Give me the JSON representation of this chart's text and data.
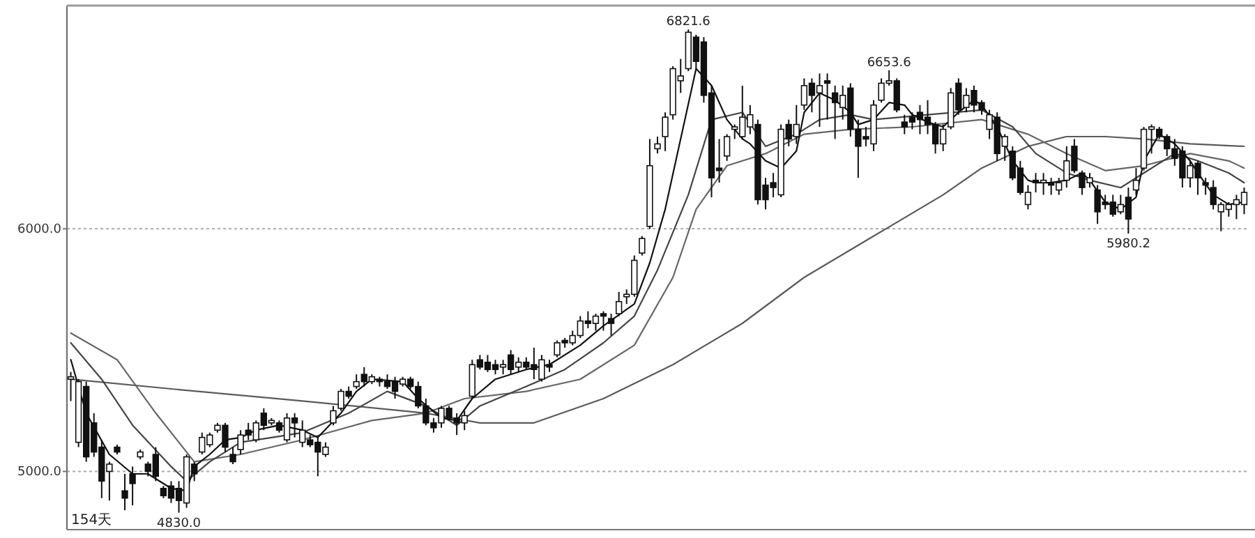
{
  "chart_data": {
    "type": "candlestick",
    "color": "#111111",
    "ylim": [
      4760,
      6920
    ],
    "yticks": [
      {
        "value": 5000,
        "label": "5000.0"
      },
      {
        "value": 6000,
        "label": "6000.0"
      }
    ],
    "grid": "y",
    "tick_labels": "y",
    "categories": [
      null,
      null,
      null,
      null,
      null,
      null,
      null,
      null,
      null,
      null,
      null,
      null,
      null,
      null,
      null,
      null,
      null,
      null,
      null,
      null,
      null,
      null,
      null,
      null,
      null,
      null,
      null,
      null,
      null,
      null,
      null,
      null,
      null,
      null,
      null,
      null,
      null,
      null,
      null,
      null,
      null,
      null,
      null,
      null,
      null,
      null,
      null,
      null,
      null,
      null,
      null,
      null,
      null,
      null,
      null,
      null,
      null,
      null,
      null,
      null,
      null,
      null,
      null,
      null,
      null,
      null,
      null,
      null,
      null,
      null,
      null,
      null,
      null,
      null,
      null,
      null,
      null,
      null,
      null,
      null,
      null,
      null,
      null,
      null,
      null,
      null,
      null,
      null,
      null,
      null,
      null,
      null,
      null,
      null,
      null,
      null,
      null,
      null,
      null,
      null,
      null,
      null,
      null,
      null,
      null,
      null,
      null,
      null,
      null,
      null,
      null,
      null,
      null,
      null,
      null,
      null,
      null,
      null,
      null,
      null,
      null,
      null,
      null,
      null,
      null,
      null,
      null,
      null,
      null,
      null,
      null,
      null,
      null,
      null,
      null,
      null,
      null,
      null,
      null,
      null,
      null,
      null,
      null,
      null,
      null,
      null,
      null,
      null,
      null,
      null,
      null,
      null,
      null
    ],
    "ohlc": [
      [
        5380,
        5410,
        5290,
        5390
      ],
      [
        5120,
        5380,
        5100,
        5370
      ],
      [
        5350,
        5370,
        5040,
        5060
      ],
      [
        5200,
        5240,
        5060,
        5080
      ],
      [
        5100,
        5130,
        4890,
        4960
      ],
      [
        5000,
        5040,
        4880,
        5030
      ],
      [
        5100,
        5110,
        5070,
        5080
      ],
      [
        4920,
        4990,
        4840,
        4890
      ],
      [
        4990,
        5020,
        4860,
        4950
      ],
      [
        5060,
        5090,
        5050,
        5080
      ],
      [
        5030,
        5040,
        4980,
        5000
      ],
      [
        5070,
        5100,
        4960,
        4980
      ],
      [
        4930,
        4940,
        4890,
        4900
      ],
      [
        4940,
        4960,
        4870,
        4890
      ],
      [
        4930,
        4960,
        4830,
        4880
      ],
      [
        4870,
        5070,
        4850,
        5060
      ],
      [
        5030,
        5040,
        4960,
        4990
      ],
      [
        5080,
        5160,
        5070,
        5140
      ],
      [
        5110,
        5160,
        5100,
        5150
      ],
      [
        5170,
        5200,
        5160,
        5190
      ],
      [
        5190,
        5200,
        5080,
        5100
      ],
      [
        5070,
        5100,
        5030,
        5040
      ],
      [
        5090,
        5170,
        5070,
        5150
      ],
      [
        5170,
        5200,
        5130,
        5150
      ],
      [
        5130,
        5210,
        5120,
        5200
      ],
      [
        5240,
        5260,
        5170,
        5190
      ],
      [
        5200,
        5220,
        5190,
        5210
      ],
      [
        5200,
        5210,
        5160,
        5170
      ],
      [
        5130,
        5240,
        5120,
        5220
      ],
      [
        5220,
        5240,
        5140,
        5200
      ],
      [
        5120,
        5210,
        5100,
        5170
      ],
      [
        5130,
        5150,
        5100,
        5110
      ],
      [
        5120,
        5140,
        4980,
        5080
      ],
      [
        5070,
        5120,
        5060,
        5100
      ],
      [
        5200,
        5270,
        5190,
        5250
      ],
      [
        5260,
        5340,
        5250,
        5330
      ],
      [
        5330,
        5350,
        5300,
        5310
      ],
      [
        5350,
        5400,
        5340,
        5370
      ],
      [
        5400,
        5430,
        5350,
        5370
      ],
      [
        5370,
        5400,
        5360,
        5390
      ],
      [
        5380,
        5390,
        5350,
        5370
      ],
      [
        5370,
        5400,
        5340,
        5350
      ],
      [
        5370,
        5390,
        5300,
        5330
      ],
      [
        5360,
        5390,
        5350,
        5380
      ],
      [
        5380,
        5390,
        5340,
        5350
      ],
      [
        5350,
        5370,
        5260,
        5270
      ],
      [
        5270,
        5300,
        5190,
        5200
      ],
      [
        5200,
        5220,
        5160,
        5180
      ],
      [
        5200,
        5270,
        5180,
        5260
      ],
      [
        5260,
        5270,
        5210,
        5220
      ],
      [
        5220,
        5240,
        5150,
        5200
      ],
      [
        5200,
        5250,
        5170,
        5230
      ],
      [
        5310,
        5460,
        5300,
        5440
      ],
      [
        5460,
        5480,
        5420,
        5430
      ],
      [
        5450,
        5480,
        5410,
        5420
      ],
      [
        5440,
        5460,
        5400,
        5420
      ],
      [
        5430,
        5460,
        5400,
        5440
      ],
      [
        5480,
        5500,
        5400,
        5420
      ],
      [
        5430,
        5470,
        5410,
        5450
      ],
      [
        5450,
        5470,
        5420,
        5430
      ],
      [
        5440,
        5510,
        5380,
        5420
      ],
      [
        5380,
        5480,
        5370,
        5460
      ],
      [
        5440,
        5460,
        5410,
        5430
      ],
      [
        5480,
        5540,
        5470,
        5530
      ],
      [
        5540,
        5550,
        5510,
        5530
      ],
      [
        5530,
        5580,
        5520,
        5560
      ],
      [
        5560,
        5640,
        5550,
        5620
      ],
      [
        5620,
        5660,
        5590,
        5610
      ],
      [
        5610,
        5650,
        5580,
        5640
      ],
      [
        5650,
        5660,
        5580,
        5640
      ],
      [
        5630,
        5650,
        5560,
        5610
      ],
      [
        5650,
        5740,
        5640,
        5700
      ],
      [
        5720,
        5750,
        5690,
        5730
      ],
      [
        5730,
        5890,
        5720,
        5870
      ],
      [
        5900,
        5970,
        5890,
        5960
      ],
      [
        6010,
        6370,
        6000,
        6260
      ],
      [
        6330,
        6380,
        6310,
        6350
      ],
      [
        6380,
        6480,
        6320,
        6460
      ],
      [
        6470,
        6670,
        6450,
        6660
      ],
      [
        6610,
        6700,
        6560,
        6630
      ],
      [
        6660,
        6821.6,
        6650,
        6810
      ],
      [
        6790,
        6800,
        6660,
        6690
      ],
      [
        6770,
        6790,
        6520,
        6550
      ],
      [
        6560,
        6590,
        6130,
        6210
      ],
      [
        6250,
        6370,
        6190,
        6240
      ],
      [
        6300,
        6390,
        6280,
        6380
      ],
      [
        6410,
        6430,
        6370,
        6420
      ],
      [
        6380,
        6590,
        6370,
        6460
      ],
      [
        6420,
        6510,
        6390,
        6470
      ],
      [
        6430,
        6450,
        6100,
        6120
      ],
      [
        6180,
        6210,
        6080,
        6120
      ],
      [
        6190,
        6230,
        6130,
        6170
      ],
      [
        6140,
        6430,
        6130,
        6410
      ],
      [
        6430,
        6450,
        6340,
        6370
      ],
      [
        6380,
        6510,
        6350,
        6430
      ],
      [
        6510,
        6620,
        6490,
        6590
      ],
      [
        6600,
        6620,
        6480,
        6550
      ],
      [
        6560,
        6640,
        6420,
        6590
      ],
      [
        6610,
        6640,
        6450,
        6600
      ],
      [
        6560,
        6590,
        6370,
        6520
      ],
      [
        6500,
        6590,
        6450,
        6550
      ],
      [
        6580,
        6600,
        6380,
        6410
      ],
      [
        6410,
        6450,
        6210,
        6340
      ],
      [
        6380,
        6420,
        6340,
        6370
      ],
      [
        6350,
        6530,
        6320,
        6510
      ],
      [
        6530,
        6620,
        6520,
        6600
      ],
      [
        6600,
        6653.6,
        6590,
        6610
      ],
      [
        6610,
        6620,
        6480,
        6490
      ],
      [
        6440,
        6470,
        6390,
        6420
      ],
      [
        6460,
        6480,
        6410,
        6440
      ],
      [
        6480,
        6510,
        6390,
        6450
      ],
      [
        6460,
        6530,
        6390,
        6430
      ],
      [
        6430,
        6440,
        6310,
        6350
      ],
      [
        6350,
        6430,
        6320,
        6410
      ],
      [
        6420,
        6580,
        6410,
        6560
      ],
      [
        6600,
        6620,
        6470,
        6490
      ],
      [
        6500,
        6580,
        6480,
        6550
      ],
      [
        6570,
        6590,
        6480,
        6510
      ],
      [
        6520,
        6530,
        6470,
        6490
      ],
      [
        6410,
        6490,
        6370,
        6470
      ],
      [
        6460,
        6480,
        6280,
        6310
      ],
      [
        6340,
        6390,
        6280,
        6380
      ],
      [
        6320,
        6340,
        6200,
        6210
      ],
      [
        6250,
        6280,
        6140,
        6150
      ],
      [
        6100,
        6180,
        6080,
        6150
      ],
      [
        6200,
        6230,
        6150,
        6190
      ],
      [
        6190,
        6230,
        6140,
        6200
      ],
      [
        6190,
        6210,
        6140,
        6180
      ],
      [
        6160,
        6210,
        6140,
        6190
      ],
      [
        6200,
        6340,
        6170,
        6280
      ],
      [
        6340,
        6370,
        6230,
        6240
      ],
      [
        6230,
        6240,
        6140,
        6170
      ],
      [
        6190,
        6230,
        6170,
        6210
      ],
      [
        6160,
        6180,
        6020,
        6070
      ],
      [
        6110,
        6140,
        6080,
        6100
      ],
      [
        6110,
        6140,
        6050,
        6060
      ],
      [
        6070,
        6140,
        6060,
        6100
      ],
      [
        6130,
        6170,
        5980.2,
        6040
      ],
      [
        6160,
        6250,
        6140,
        6200
      ],
      [
        6250,
        6420,
        6240,
        6410
      ],
      [
        6410,
        6430,
        6310,
        6420
      ],
      [
        6410,
        6420,
        6370,
        6380
      ],
      [
        6380,
        6390,
        6300,
        6330
      ],
      [
        6330,
        6370,
        6260,
        6290
      ],
      [
        6320,
        6340,
        6170,
        6210
      ],
      [
        6210,
        6280,
        6170,
        6260
      ],
      [
        6270,
        6280,
        6140,
        6210
      ],
      [
        6190,
        6210,
        6140,
        6180
      ],
      [
        6170,
        6200,
        6080,
        6100
      ],
      [
        6070,
        6110,
        5990,
        6100
      ],
      [
        6080,
        6110,
        6050,
        6100
      ],
      [
        6100,
        6140,
        6040,
        6120
      ],
      [
        6100,
        6170,
        6060,
        6150
      ]
    ],
    "series": [
      {
        "type": "line",
        "color": "#5a5a5a",
        "values": [
          5380,
          null,
          null,
          null,
          null,
          null,
          null,
          null,
          null,
          null,
          null,
          null,
          null,
          5340,
          null,
          null,
          null,
          null,
          null,
          null,
          null,
          null,
          null,
          null,
          null,
          null,
          null,
          null,
          null,
          null,
          5290,
          null,
          null,
          null,
          null,
          null,
          null,
          null,
          null,
          null,
          null,
          null,
          null,
          null,
          null,
          null,
          5240,
          null,
          null,
          null,
          null,
          null,
          null,
          5200,
          null,
          null,
          null,
          null,
          null,
          null,
          5200,
          null,
          null,
          null,
          null,
          null,
          null,
          null,
          null,
          5300,
          null,
          null,
          null,
          null,
          null,
          null,
          null,
          null,
          5440,
          null,
          null,
          null,
          null,
          null,
          null,
          null,
          null,
          5610,
          null,
          null,
          null,
          null,
          null,
          null,
          null,
          5800,
          null,
          null,
          null,
          null,
          null,
          null,
          null,
          null,
          5970,
          null,
          null,
          null,
          null,
          null,
          null,
          null,
          null,
          6140,
          null,
          null,
          null,
          null,
          6250,
          null,
          null,
          null,
          null,
          null,
          6340,
          null,
          null,
          null,
          null,
          6380,
          null,
          null,
          null,
          null,
          6380,
          null,
          null,
          null,
          null,
          6370,
          null,
          null,
          null,
          null,
          null,
          6350,
          null,
          null,
          null,
          null,
          null,
          null,
          6340
        ]
      },
      {
        "type": "line",
        "color": "#666666",
        "values": [
          5570,
          null,
          null,
          null,
          null,
          null,
          5460,
          null,
          null,
          null,
          null,
          5240,
          null,
          null,
          null,
          null,
          5040,
          null,
          null,
          null,
          null,
          null,
          5070,
          null,
          null,
          null,
          null,
          null,
          null,
          null,
          5130,
          null,
          null,
          null,
          null,
          null,
          null,
          null,
          null,
          5210,
          null,
          null,
          null,
          null,
          null,
          null,
          5240,
          null,
          null,
          null,
          null,
          5300,
          null,
          null,
          null,
          null,
          null,
          null,
          null,
          5330,
          null,
          null,
          null,
          null,
          null,
          null,
          5380,
          null,
          null,
          null,
          null,
          null,
          null,
          5520,
          null,
          null,
          null,
          null,
          5800,
          null,
          null,
          6080,
          null,
          null,
          null,
          6260,
          null,
          null,
          null,
          null,
          6310,
          null,
          null,
          null,
          null,
          6390,
          null,
          null,
          null,
          null,
          null,
          6410,
          null,
          null,
          null,
          null,
          null,
          null,
          null,
          6420,
          null,
          null,
          null,
          null,
          null,
          null,
          null,
          null,
          6450,
          null,
          null,
          null,
          null,
          null,
          6390,
          null,
          null,
          null,
          null,
          6310,
          null,
          null,
          null,
          null,
          6240,
          null,
          null,
          null,
          null,
          6260,
          null,
          null,
          null,
          null,
          null,
          6310,
          null,
          null,
          null,
          null,
          6280,
          null,
          6250
        ]
      },
      {
        "type": "line",
        "color": "#444444",
        "values": [
          5530,
          null,
          null,
          null,
          5380,
          null,
          null,
          null,
          5190,
          null,
          null,
          null,
          null,
          5020,
          null,
          4960,
          null,
          null,
          5040,
          null,
          null,
          null,
          5120,
          null,
          null,
          null,
          5140,
          null,
          null,
          null,
          5160,
          null,
          null,
          null,
          null,
          null,
          5240,
          null,
          null,
          null,
          null,
          5330,
          null,
          null,
          null,
          null,
          5270,
          null,
          null,
          null,
          5190,
          null,
          null,
          5270,
          null,
          null,
          null,
          null,
          null,
          5350,
          null,
          null,
          null,
          null,
          5420,
          null,
          null,
          null,
          null,
          5530,
          null,
          null,
          null,
          5640,
          null,
          null,
          5830,
          null,
          null,
          null,
          6140,
          null,
          null,
          6450,
          null,
          null,
          null,
          6480,
          null,
          null,
          6340,
          null,
          null,
          null,
          6390,
          null,
          null,
          6450,
          null,
          null,
          null,
          6470,
          null,
          null,
          6450,
          null,
          null,
          null,
          null,
          null,
          null,
          6470,
          null,
          null,
          null,
          null,
          null,
          null,
          6490,
          null,
          null,
          null,
          6420,
          null,
          null,
          6310,
          null,
          null,
          null,
          6230,
          null,
          null,
          6200,
          null,
          null,
          null,
          6170,
          null,
          null,
          6230,
          null,
          null,
          null,
          6310,
          null,
          null,
          6280,
          null,
          null,
          null,
          6230,
          null,
          6190
        ]
      },
      {
        "type": "line",
        "color": "#111111",
        "values": [
          5460,
          null,
          5240,
          null,
          null,
          5070,
          null,
          null,
          4990,
          null,
          4990,
          null,
          null,
          4930,
          null,
          4920,
          5020,
          null,
          5070,
          null,
          5130,
          null,
          5140,
          null,
          5170,
          null,
          null,
          5190,
          null,
          null,
          5170,
          null,
          5140,
          null,
          null,
          5240,
          null,
          5330,
          null,
          5380,
          null,
          null,
          null,
          5370,
          null,
          5300,
          null,
          null,
          5220,
          null,
          5210,
          null,
          5300,
          null,
          null,
          5380,
          null,
          null,
          null,
          5420,
          null,
          null,
          5440,
          null,
          null,
          null,
          5520,
          null,
          null,
          5600,
          null,
          null,
          null,
          5690,
          null,
          5860,
          null,
          6080,
          null,
          6370,
          null,
          6660,
          null,
          6590,
          null,
          6450,
          null,
          6370,
          6350,
          null,
          6280,
          null,
          6250,
          null,
          6320,
          6480,
          null,
          6560,
          null,
          6530,
          null,
          6480,
          6430,
          null,
          6450,
          null,
          6520,
          null,
          6510,
          6470,
          null,
          6440,
          null,
          6420,
          null,
          6480,
          null,
          6530,
          6510,
          null,
          6420,
          null,
          6280,
          null,
          6200,
          6190,
          null,
          6190,
          null,
          6200,
          null,
          6230,
          6200,
          null,
          6110,
          null,
          6080,
          null,
          6130,
          6280,
          null,
          6390,
          null,
          6350,
          null,
          6280,
          6230,
          null,
          6140,
          null,
          6100,
          null,
          6110
        ]
      }
    ],
    "annotations": [
      {
        "text": "6821.6",
        "y": 6821.6
      },
      {
        "text": "6653.6",
        "y": 6653.6
      },
      {
        "text": "5980.2",
        "y": 5980.2
      },
      {
        "text": "4830.0",
        "y": 4830
      },
      "154天"
    ]
  }
}
